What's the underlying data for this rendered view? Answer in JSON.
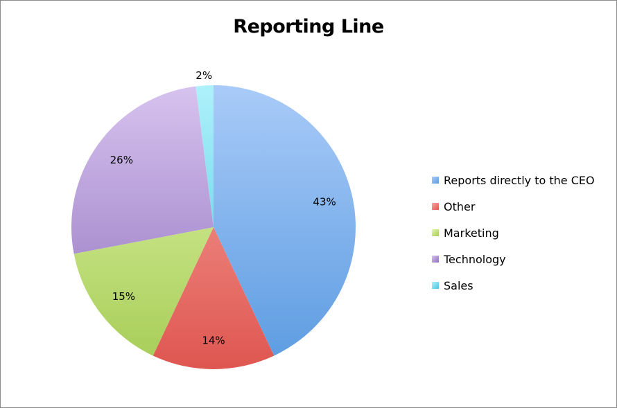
{
  "chart_data": {
    "type": "pie",
    "title": "Reporting Line",
    "start_angle_deg": 0,
    "direction": "clockwise",
    "slices": [
      {
        "label": "Reports directly to the CEO",
        "value": 43,
        "value_label": "43%",
        "color": "#5b9be1",
        "light": "#a9cbf8"
      },
      {
        "label": "Other",
        "value": 14,
        "value_label": "14%",
        "color": "#df5650",
        "light": "#f8a7a2"
      },
      {
        "label": "Marketing",
        "value": 15,
        "value_label": "15%",
        "color": "#a6cc56",
        "light": "#e3f7ad"
      },
      {
        "label": "Technology",
        "value": 26,
        "value_label": "26%",
        "color": "#8e6fbb",
        "light": "#d7c3ef"
      },
      {
        "label": "Sales",
        "value": 2,
        "value_label": "2%",
        "color": "#4bc5de",
        "light": "#aef1fb"
      }
    ],
    "legend_position": "right"
  }
}
